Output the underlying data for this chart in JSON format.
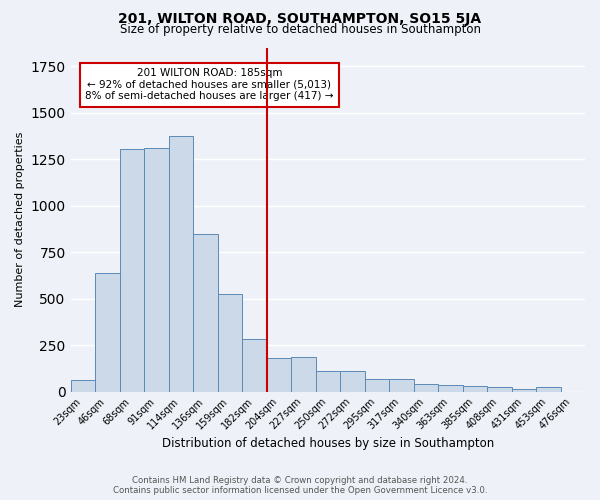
{
  "title": "201, WILTON ROAD, SOUTHAMPTON, SO15 5JA",
  "subtitle": "Size of property relative to detached houses in Southampton",
  "xlabel": "Distribution of detached houses by size in Southampton",
  "ylabel": "Number of detached properties",
  "footer1": "Contains HM Land Registry data © Crown copyright and database right 2024.",
  "footer2": "Contains public sector information licensed under the Open Government Licence v3.0.",
  "annotation_line1": "201 WILTON ROAD: 185sqm",
  "annotation_line2": "← 92% of detached houses are smaller (5,013)",
  "annotation_line3": "8% of semi-detached houses are larger (417) →",
  "bar_values": [
    60,
    638,
    1305,
    1307,
    1375,
    845,
    525,
    285,
    180,
    185,
    110,
    110,
    70,
    70,
    40,
    35,
    30,
    22,
    15,
    22,
    0
  ],
  "categories": [
    "23sqm",
    "46sqm",
    "68sqm",
    "91sqm",
    "114sqm",
    "136sqm",
    "159sqm",
    "182sqm",
    "204sqm",
    "227sqm",
    "250sqm",
    "272sqm",
    "295sqm",
    "317sqm",
    "340sqm",
    "363sqm",
    "385sqm",
    "408sqm",
    "431sqm",
    "453sqm",
    "476sqm"
  ],
  "bar_color": "#ccd9e8",
  "bar_edge_color": "#5b8ab5",
  "vline_x": 7.5,
  "vline_color": "#cc0000",
  "ylim_min": 0,
  "ylim_max": 1850,
  "background_color": "#eef2f8",
  "grid_color": "#ffffff",
  "annotation_box_color": "#ffffff",
  "annotation_box_edge": "#cc0000"
}
